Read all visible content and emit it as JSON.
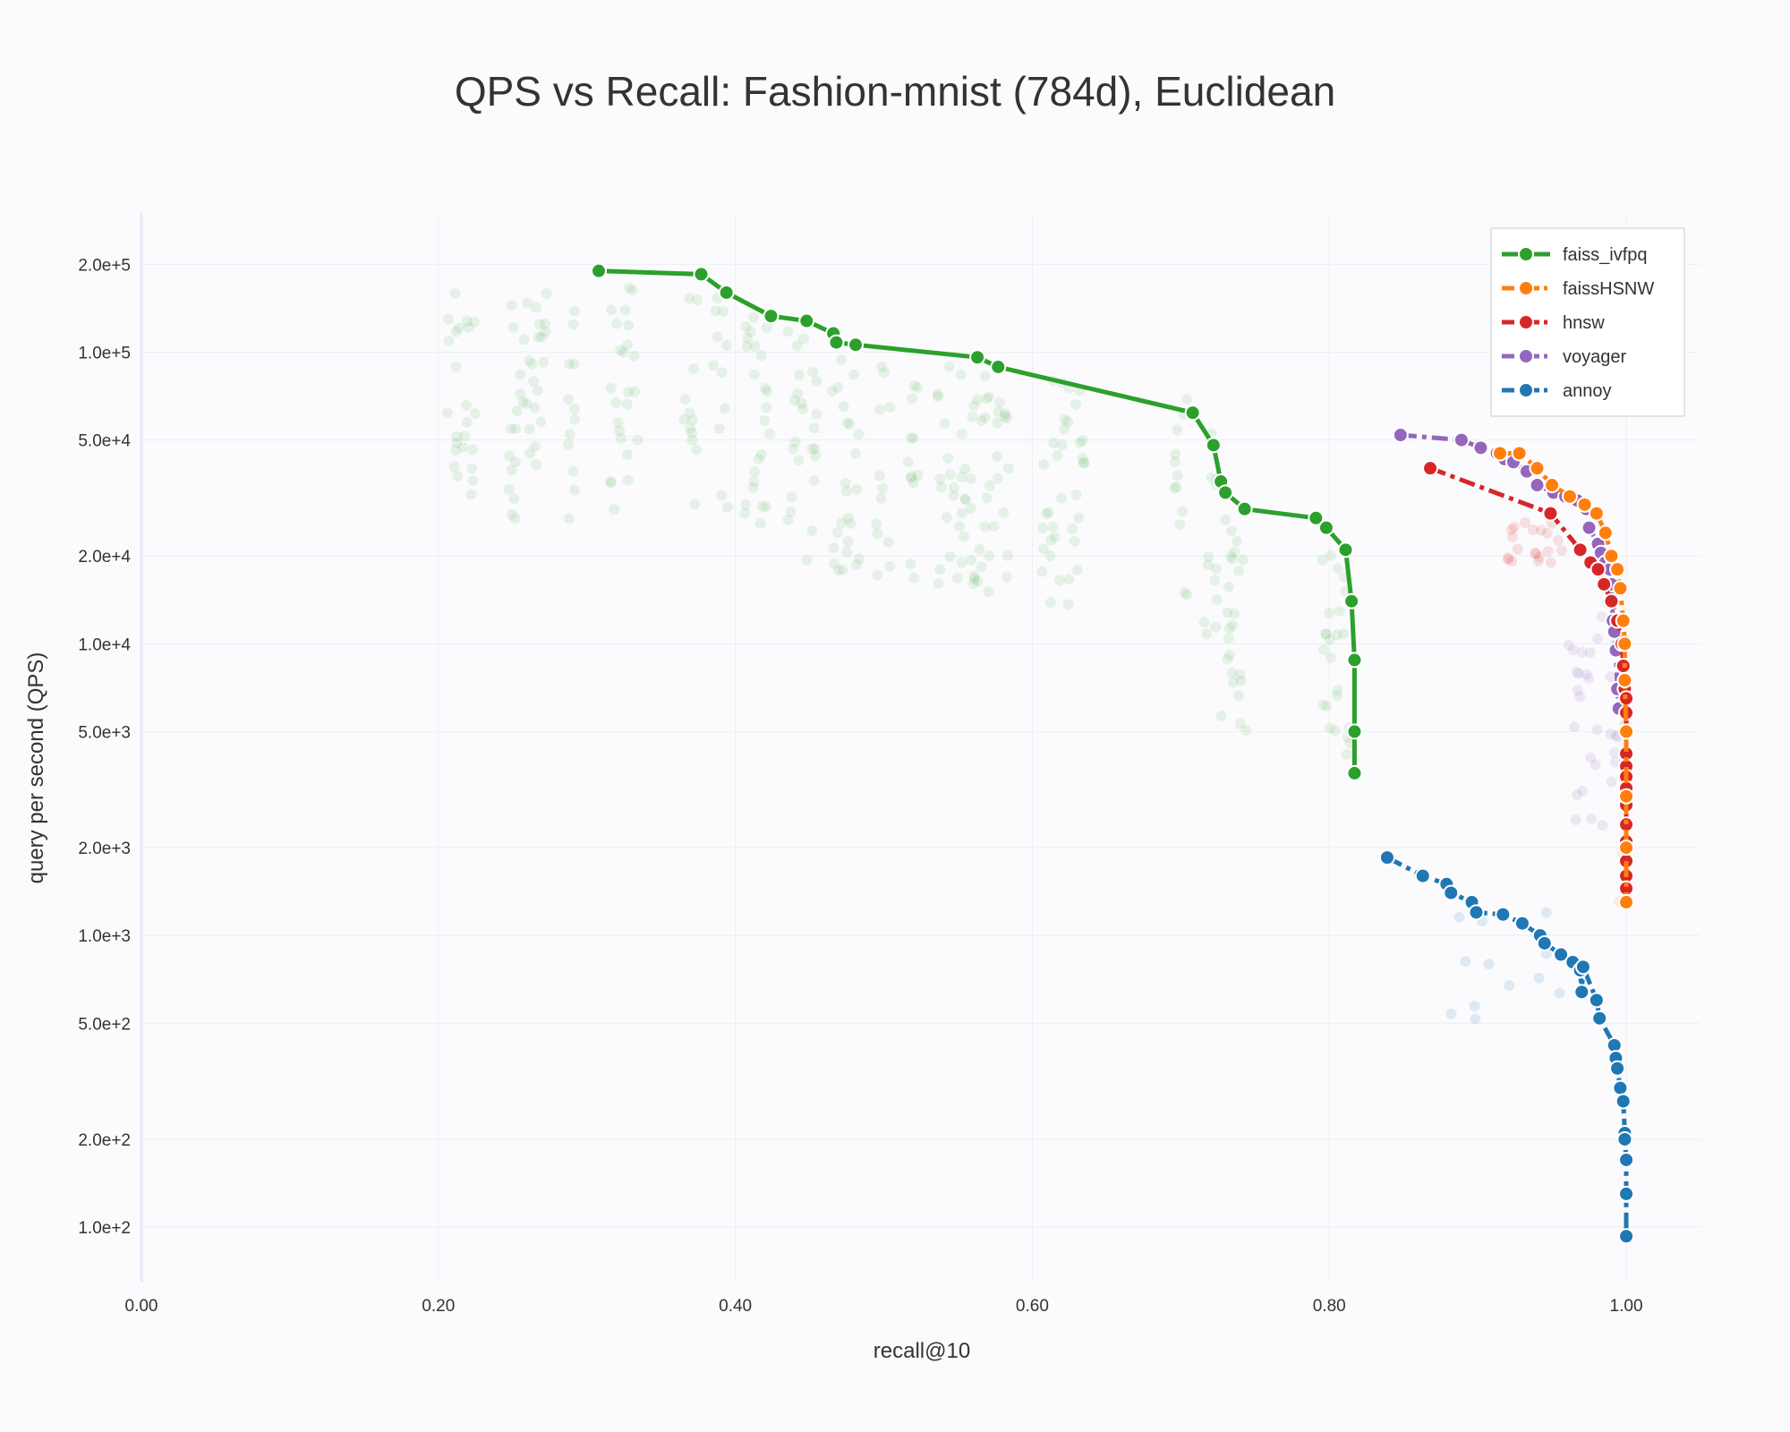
{
  "chart_data": {
    "type": "line",
    "title": "QPS vs Recall: Fashion-mnist (784d), Euclidean",
    "xlabel": "recall@10",
    "ylabel": "query per second (QPS)",
    "xlim": [
      0,
      1.05
    ],
    "ylim": [
      65,
      300000
    ],
    "yscale": "log",
    "grid": true,
    "legend_position": "top-right",
    "x_ticks": [
      {
        "value": 0,
        "label": "0.00"
      },
      {
        "value": 0.2,
        "label": "0.20"
      },
      {
        "value": 0.4,
        "label": "0.40"
      },
      {
        "value": 0.6,
        "label": "0.60"
      },
      {
        "value": 0.8,
        "label": "0.80"
      },
      {
        "value": 1.0,
        "label": "1.00"
      }
    ],
    "y_ticks": [
      {
        "value": 100,
        "label": "1.0e+2"
      },
      {
        "value": 200,
        "label": "2.0e+2"
      },
      {
        "value": 500,
        "label": "5.0e+2"
      },
      {
        "value": 1000,
        "label": "1.0e+3"
      },
      {
        "value": 2000,
        "label": "2.0e+3"
      },
      {
        "value": 5000,
        "label": "5.0e+3"
      },
      {
        "value": 10000,
        "label": "1.0e+4"
      },
      {
        "value": 20000,
        "label": "2.0e+4"
      },
      {
        "value": 50000,
        "label": "5.0e+4"
      },
      {
        "value": 100000,
        "label": "1.0e+5"
      },
      {
        "value": 200000,
        "label": "2.0e+5"
      }
    ],
    "series": [
      {
        "name": "faiss_ivfpq",
        "color": "#2ca02c",
        "x": [
          0.308,
          0.377,
          0.394,
          0.424,
          0.448,
          0.466,
          0.468,
          0.481,
          0.563,
          0.577,
          0.708,
          0.722,
          0.727,
          0.73,
          0.743,
          0.791,
          0.798,
          0.811,
          0.815,
          0.817,
          0.817,
          0.817
        ],
        "y": [
          190000,
          185000,
          160000,
          133000,
          128000,
          116000,
          108000,
          106000,
          96000,
          89000,
          62000,
          48000,
          36000,
          33000,
          29000,
          27000,
          25000,
          21000,
          14000,
          8800,
          5000,
          3600
        ]
      },
      {
        "name": "faissHSNW",
        "color": "#ff7f0e",
        "x": [
          0.915,
          0.928,
          0.94,
          0.95,
          0.962,
          0.972,
          0.98,
          0.986,
          0.99,
          0.994,
          0.996,
          0.998,
          0.999,
          0.999,
          1.0,
          1.0,
          1.0,
          1.0
        ],
        "y": [
          45000,
          45000,
          40000,
          35000,
          32000,
          30000,
          28000,
          24000,
          20000,
          18000,
          15500,
          12000,
          10000,
          7500,
          5000,
          3000,
          2000,
          1300
        ]
      },
      {
        "name": "hnsw",
        "color": "#d62728",
        "x": [
          0.868,
          0.949,
          0.969,
          0.976,
          0.981,
          0.985,
          0.99,
          0.994,
          0.997,
          0.998,
          0.999,
          1.0,
          1.0,
          1.0,
          1.0,
          1.0,
          1.0,
          1.0,
          1.0,
          1.0,
          1.0,
          1.0,
          1.0,
          1.0
        ],
        "y": [
          40000,
          28000,
          21000,
          19000,
          18000,
          16000,
          14000,
          12000,
          10000,
          8400,
          7000,
          6500,
          5800,
          5000,
          4200,
          3800,
          3500,
          3200,
          2800,
          2400,
          2100,
          1800,
          1600,
          1450
        ]
      },
      {
        "name": "voyager",
        "color": "#9467bd",
        "x": [
          0.848,
          0.889,
          0.902,
          0.913,
          0.918,
          0.924,
          0.933,
          0.94,
          0.951,
          0.959,
          0.967,
          0.973,
          0.975,
          0.981,
          0.983,
          0.986,
          0.989,
          0.99,
          0.991,
          0.992,
          0.993,
          0.994,
          0.995
        ],
        "y": [
          52000,
          50000,
          47000,
          45000,
          43000,
          42000,
          39000,
          35000,
          33000,
          32000,
          31000,
          29000,
          25000,
          22000,
          20500,
          19000,
          18000,
          16000,
          12000,
          11000,
          9500,
          7000,
          6000
        ]
      },
      {
        "name": "annoy",
        "color": "#1f77b4",
        "x": [
          0.839,
          0.863,
          0.879,
          0.882,
          0.896,
          0.899,
          0.917,
          0.93,
          0.942,
          0.945,
          0.956,
          0.964,
          0.969,
          0.97,
          0.971,
          0.98,
          0.982,
          0.992,
          0.993,
          0.994,
          0.996,
          0.998,
          0.999,
          0.999,
          1.0,
          1.0,
          1.0
        ],
        "y": [
          1850,
          1600,
          1500,
          1400,
          1300,
          1200,
          1180,
          1100,
          1000,
          940,
          860,
          810,
          760,
          640,
          780,
          600,
          520,
          420,
          380,
          350,
          300,
          270,
          210,
          200,
          170,
          130,
          93
        ]
      }
    ]
  }
}
